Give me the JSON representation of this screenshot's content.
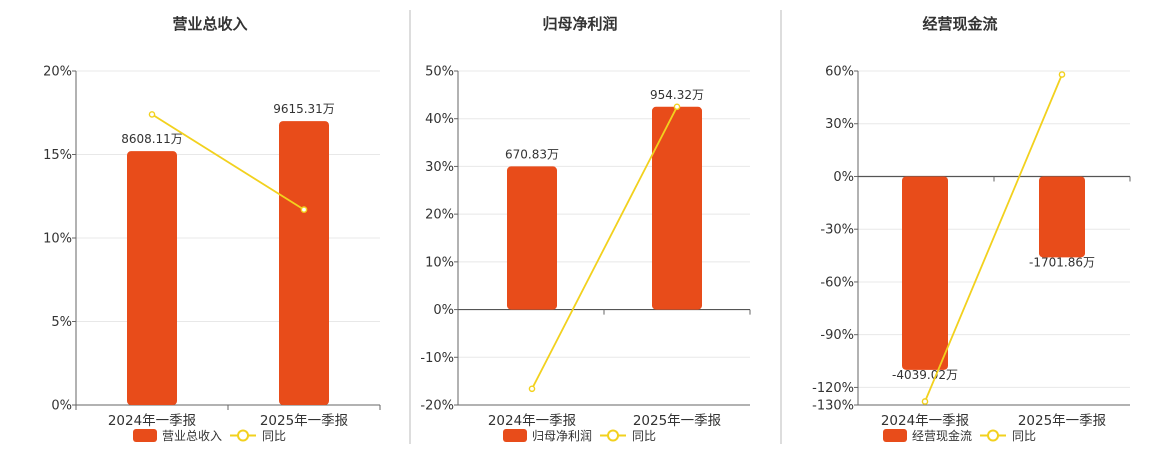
{
  "colors": {
    "bar": "#e84c1a",
    "line": "#f2d11e",
    "sep": "#bbbbbb"
  },
  "chart_data": [
    {
      "type": "bar",
      "title": "营业总收入",
      "categories": [
        "2024年一季报",
        "2025年一季报"
      ],
      "series": [
        {
          "name": "营业总收入",
          "kind": "bar",
          "values": [
            15.2,
            17.0
          ],
          "labels": [
            "8608.11万",
            "9615.31万"
          ]
        },
        {
          "name": "同比",
          "kind": "line",
          "values": [
            17.4,
            11.7
          ]
        }
      ],
      "ylim": [
        0,
        20
      ],
      "yticks": [
        0,
        5,
        10,
        15,
        20
      ],
      "ytick_labels": [
        "0%",
        "5%",
        "10%",
        "15%",
        "20%"
      ],
      "grid": true,
      "legend": "bottom"
    },
    {
      "type": "bar",
      "title": "归母净利润",
      "categories": [
        "2024年一季报",
        "2025年一季报"
      ],
      "series": [
        {
          "name": "归母净利润",
          "kind": "bar",
          "values": [
            30.0,
            42.5
          ],
          "labels": [
            "670.83万",
            "954.32万"
          ]
        },
        {
          "name": "同比",
          "kind": "line",
          "values": [
            -16.6,
            42.5
          ]
        }
      ],
      "ylim": [
        -20,
        50
      ],
      "yticks": [
        -20,
        -10,
        0,
        10,
        20,
        30,
        40,
        50
      ],
      "ytick_labels": [
        "-20%",
        "-10%",
        "0%",
        "10%",
        "20%",
        "30%",
        "40%",
        "50%"
      ],
      "grid": true,
      "legend": "bottom"
    },
    {
      "type": "bar",
      "title": "经营现金流",
      "categories": [
        "2024年一季报",
        "2025年一季报"
      ],
      "series": [
        {
          "name": "经营现金流",
          "kind": "bar",
          "values": [
            -110.0,
            -46.0
          ],
          "labels": [
            "-4039.02万",
            "-1701.86万"
          ]
        },
        {
          "name": "同比",
          "kind": "line",
          "values": [
            -128.0,
            58.0
          ]
        }
      ],
      "ylim": [
        -130,
        60
      ],
      "yticks": [
        -130,
        -120,
        -90,
        -60,
        -30,
        0,
        30,
        60
      ],
      "ytick_labels": [
        "-130%",
        "-120%",
        "-90%",
        "-60%",
        "-30%",
        "0%",
        "30%",
        "60%"
      ],
      "grid": true,
      "legend": "bottom"
    }
  ]
}
